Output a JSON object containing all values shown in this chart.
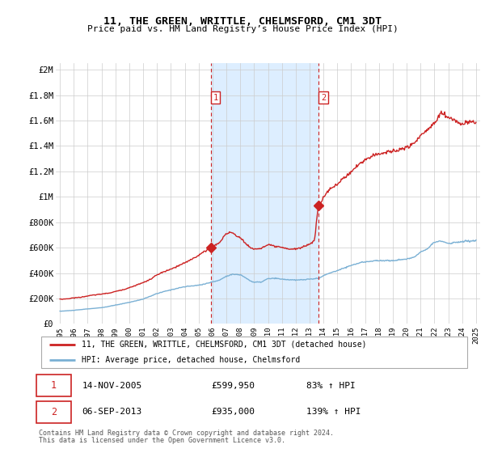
{
  "title": "11, THE GREEN, WRITTLE, CHELMSFORD, CM1 3DT",
  "subtitle": "Price paid vs. HM Land Registry’s House Price Index (HPI)",
  "ylabel_ticks": [
    "£0",
    "£200K",
    "£400K",
    "£600K",
    "£800K",
    "£1M",
    "£1.2M",
    "£1.4M",
    "£1.6M",
    "£1.8M",
    "£2M"
  ],
  "ytick_values": [
    0,
    200000,
    400000,
    600000,
    800000,
    1000000,
    1200000,
    1400000,
    1600000,
    1800000,
    2000000
  ],
  "ylim": [
    0,
    2050000
  ],
  "hpi_color": "#7ab0d4",
  "price_color": "#cc2222",
  "sale1_x": 2005.88,
  "sale1_y": 599950,
  "sale2_x": 2013.67,
  "sale2_y": 935000,
  "legend_line1": "11, THE GREEN, WRITTLE, CHELMSFORD, CM1 3DT (detached house)",
  "legend_line2": "HPI: Average price, detached house, Chelmsford",
  "table_row1": [
    "1",
    "14-NOV-2005",
    "£599,950",
    "83% ↑ HPI"
  ],
  "table_row2": [
    "2",
    "06-SEP-2013",
    "£935,000",
    "139% ↑ HPI"
  ],
  "footnote1": "Contains HM Land Registry data © Crown copyright and database right 2024.",
  "footnote2": "This data is licensed under the Open Government Licence v3.0.",
  "shade_color": "#ddeeff",
  "grid_color": "#cccccc",
  "xlim_left": 1994.7,
  "xlim_right": 2025.3
}
